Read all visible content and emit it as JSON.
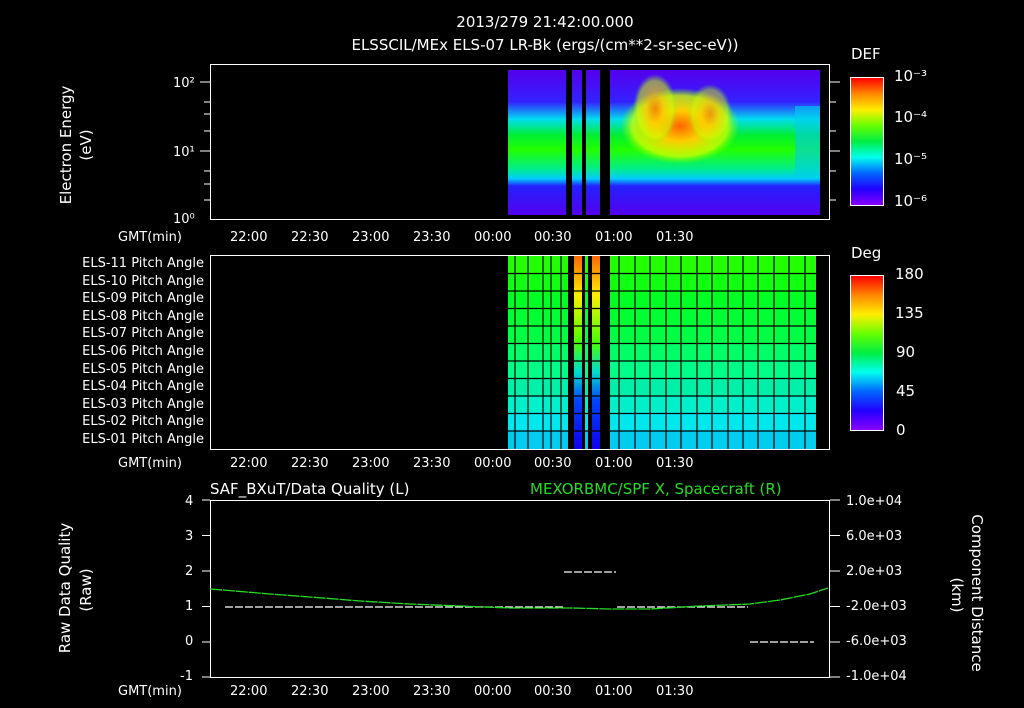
{
  "header": {
    "datetime": "2013/279 21:42:00.000",
    "title": "ELSSCIL/MEx ELS-07 LR-Bk  (ergs/(cm**2-sr-sec-eV))"
  },
  "time_axis": {
    "label": "GMT(min)",
    "ticks": [
      "22:00",
      "22:30",
      "23:00",
      "23:30",
      "00:00",
      "00:30",
      "01:00",
      "01:30"
    ]
  },
  "panel1": {
    "ylabel": "Electron Energy",
    "yunit": "(eV)",
    "yticks": [
      "10²",
      "10¹",
      "10⁰"
    ],
    "colorbar": {
      "title": "DEF",
      "ticks": [
        "10⁻³",
        "10⁻⁴",
        "10⁻⁵",
        "10⁻⁶"
      ]
    }
  },
  "panel2": {
    "rows": [
      "ELS-11 Pitch Angle",
      "ELS-10 Pitch Angle",
      "ELS-09 Pitch Angle",
      "ELS-08 Pitch Angle",
      "ELS-07 Pitch Angle",
      "ELS-06 Pitch Angle",
      "ELS-05 Pitch Angle",
      "ELS-04 Pitch Angle",
      "ELS-03 Pitch Angle",
      "ELS-02 Pitch Angle",
      "ELS-01 Pitch Angle"
    ],
    "colorbar": {
      "title": "Deg",
      "ticks": [
        "180",
        "135",
        "90",
        "45",
        "0"
      ]
    }
  },
  "panel3": {
    "left_title": "SAF_BXuT/Data Quality (L)",
    "right_title": "MEXORBMC/SPF X, Spacecraft (R)",
    "right_title_color": "#22dd22",
    "ylabel_left": "Raw Data Quality",
    "yunit_left": "(Raw)",
    "ylabel_right": "Component Distance",
    "yunit_right": "(km)",
    "yticks_left": [
      "4",
      "3",
      "2",
      "1",
      "0",
      "-1"
    ],
    "yticks_right": [
      "1.0e+04",
      "6.0e+03",
      "2.0e+03",
      "-2.0e+03",
      "-6.0e+03",
      "-1.0e+04"
    ]
  },
  "chart_data": [
    {
      "type": "heatmap",
      "title": "ELSSCIL/MEx ELS-07 LR-Bk (ergs/(cm**2-sr-sec-eV))",
      "xlabel": "GMT(min)",
      "ylabel": "Electron Energy (eV)",
      "x_ticks": [
        "22:00",
        "22:30",
        "23:00",
        "23:30",
        "00:00",
        "00:30",
        "01:00",
        "01:30"
      ],
      "y_scale": "log",
      "ylim": [
        1,
        150
      ],
      "colorbar": {
        "label": "DEF",
        "scale": "log",
        "range": [
          1e-06,
          0.001
        ]
      },
      "data_start": "23:43",
      "gaps": [
        "00:08-00:10",
        "00:14-00:16",
        "00:18-00:22"
      ],
      "features": "Green band ~5-30 eV throughout; peaks (yellow/red ~5e-4) near 00:40-00:55 at ~10-40 eV"
    },
    {
      "type": "heatmap",
      "title": "ELS Pitch Angle",
      "xlabel": "GMT(min)",
      "categories": [
        "ELS-11",
        "ELS-10",
        "ELS-09",
        "ELS-08",
        "ELS-07",
        "ELS-06",
        "ELS-05",
        "ELS-04",
        "ELS-03",
        "ELS-02",
        "ELS-01"
      ],
      "colorbar": {
        "label": "Deg",
        "range": [
          0,
          180
        ]
      },
      "approx_values_deg": [
        115,
        112,
        108,
        104,
        100,
        96,
        90,
        82,
        72,
        62,
        55
      ],
      "data_range": [
        "23:43",
        "01:46"
      ]
    },
    {
      "type": "line",
      "title": "SAF_BXuT/Data Quality (L) / MEXORBMC/SPF X, Spacecraft (R)",
      "xlabel": "GMT(min)",
      "ylabel": "Raw Data Quality (Raw)",
      "ylim": [
        -1,
        4
      ],
      "y2label": "Component Distance (km)",
      "y2lim": [
        -10000,
        10000
      ],
      "series": [
        {
          "name": "Data Quality",
          "axis": "left",
          "color": "#ffffff",
          "segments": [
            {
              "x": [
                "21:50",
                "00:03"
              ],
              "y": 1
            },
            {
              "x": [
                "00:04",
                "00:18"
              ],
              "y": 2
            },
            {
              "x": [
                "00:19",
                "01:19"
              ],
              "y": 1
            },
            {
              "x": [
                "01:20",
                "01:40"
              ],
              "y": 0
            }
          ]
        },
        {
          "name": "SPF X",
          "axis": "right",
          "color": "#22dd22",
          "x": [
            "21:42",
            "22:00",
            "22:30",
            "23:00",
            "23:30",
            "00:00",
            "00:30",
            "01:00",
            "01:30",
            "01:47"
          ],
          "y": [
            2000,
            1800,
            1300,
            800,
            300,
            0,
            -300,
            -200,
            800,
            2200
          ]
        }
      ]
    }
  ]
}
